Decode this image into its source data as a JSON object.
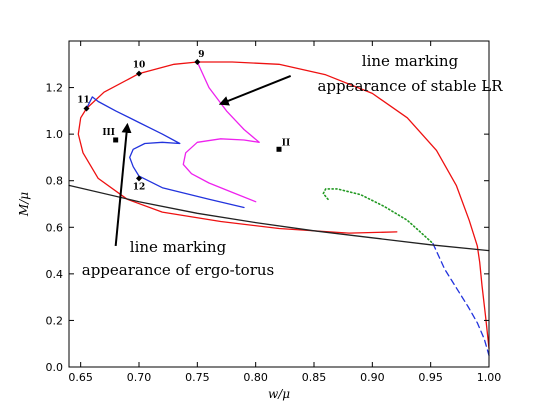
{
  "chart_data": {
    "type": "line",
    "title": "",
    "xlabel": "w/μ",
    "ylabel": "M/μ",
    "xlim": [
      0.64,
      1.0
    ],
    "ylim": [
      0.0,
      1.4
    ],
    "xticks": [
      "0.65",
      "0.70",
      "0.75",
      "0.80",
      "0.85",
      "0.90",
      "0.95",
      "1.00"
    ],
    "xtick_values": [
      0.65,
      0.7,
      0.75,
      0.8,
      0.85,
      0.9,
      0.95,
      1.0
    ],
    "yticks": [
      "0.0",
      "0.2",
      "0.4",
      "0.6",
      "0.8",
      "1.0",
      "1.2"
    ],
    "ytick_values": [
      0.0,
      0.2,
      0.4,
      0.6,
      0.8,
      1.0,
      1.2
    ],
    "grid": false,
    "series": [
      {
        "color": "#ee1111",
        "style": "solid",
        "points": [
          [
            0.921,
            0.58
          ],
          [
            0.88,
            0.575
          ],
          [
            0.82,
            0.595
          ],
          [
            0.77,
            0.625
          ],
          [
            0.72,
            0.665
          ],
          [
            0.69,
            0.72
          ],
          [
            0.665,
            0.81
          ],
          [
            0.652,
            0.92
          ],
          [
            0.648,
            1.0
          ],
          [
            0.65,
            1.07
          ],
          [
            0.655,
            1.11
          ],
          [
            0.67,
            1.18
          ],
          [
            0.7,
            1.26
          ],
          [
            0.73,
            1.3
          ],
          [
            0.75,
            1.31
          ],
          [
            0.78,
            1.31
          ],
          [
            0.82,
            1.3
          ],
          [
            0.86,
            1.255
          ],
          [
            0.9,
            1.175
          ],
          [
            0.93,
            1.07
          ],
          [
            0.955,
            0.93
          ],
          [
            0.972,
            0.78
          ],
          [
            0.983,
            0.63
          ],
          [
            0.99,
            0.52
          ],
          [
            0.992,
            0.45
          ],
          [
            0.994,
            0.35
          ],
          [
            0.997,
            0.22
          ],
          [
            1.0,
            0.08
          ]
        ]
      },
      {
        "color": "#2233dd",
        "style": "solid",
        "points": [
          [
            0.655,
            1.11
          ],
          [
            0.66,
            1.16
          ],
          [
            0.665,
            1.14
          ],
          [
            0.68,
            1.1
          ],
          [
            0.7,
            1.05
          ],
          [
            0.72,
            1.0
          ],
          [
            0.735,
            0.96
          ],
          [
            0.72,
            0.965
          ],
          [
            0.705,
            0.96
          ],
          [
            0.695,
            0.935
          ],
          [
            0.692,
            0.9
          ],
          [
            0.695,
            0.86
          ],
          [
            0.7,
            0.82
          ],
          [
            0.72,
            0.77
          ],
          [
            0.76,
            0.72
          ],
          [
            0.79,
            0.685
          ]
        ]
      },
      {
        "color": "#ee22ee",
        "style": "solid",
        "points": [
          [
            0.75,
            1.31
          ],
          [
            0.76,
            1.2
          ],
          [
            0.775,
            1.1
          ],
          [
            0.79,
            1.02
          ],
          [
            0.803,
            0.965
          ],
          [
            0.79,
            0.975
          ],
          [
            0.77,
            0.98
          ],
          [
            0.75,
            0.965
          ],
          [
            0.74,
            0.92
          ],
          [
            0.738,
            0.87
          ],
          [
            0.745,
            0.83
          ],
          [
            0.76,
            0.79
          ],
          [
            0.78,
            0.75
          ],
          [
            0.8,
            0.71
          ]
        ]
      },
      {
        "color": "#229922",
        "style": "dotted",
        "points": [
          [
            0.862,
            0.72
          ],
          [
            0.858,
            0.745
          ],
          [
            0.86,
            0.765
          ],
          [
            0.87,
            0.765
          ],
          [
            0.89,
            0.74
          ],
          [
            0.91,
            0.69
          ],
          [
            0.93,
            0.63
          ],
          [
            0.94,
            0.585
          ],
          [
            0.952,
            0.53
          ]
        ]
      },
      {
        "color": "#2233dd",
        "style": "dashed",
        "points": [
          [
            0.952,
            0.53
          ],
          [
            0.962,
            0.42
          ],
          [
            0.972,
            0.34
          ],
          [
            0.982,
            0.26
          ],
          [
            0.99,
            0.19
          ],
          [
            0.996,
            0.12
          ],
          [
            1.0,
            0.05
          ]
        ]
      },
      {
        "color": "#222222",
        "style": "solid",
        "points": [
          [
            0.64,
            0.78
          ],
          [
            0.7,
            0.71
          ],
          [
            0.75,
            0.66
          ],
          [
            0.8,
            0.62
          ],
          [
            0.85,
            0.585
          ],
          [
            0.9,
            0.555
          ],
          [
            0.95,
            0.525
          ],
          [
            1.0,
            0.5
          ]
        ]
      }
    ],
    "labeled_points": [
      {
        "label": "9",
        "x": 0.75,
        "y": 1.31,
        "marker": "diamond"
      },
      {
        "label": "10",
        "x": 0.7,
        "y": 1.26,
        "marker": "diamond"
      },
      {
        "label": "11",
        "x": 0.655,
        "y": 1.11,
        "marker": "diamond"
      },
      {
        "label": "12",
        "x": 0.7,
        "y": 0.81,
        "marker": "diamond"
      },
      {
        "label": "II",
        "x": 0.82,
        "y": 0.935,
        "marker": "square"
      },
      {
        "label": "III",
        "x": 0.68,
        "y": 0.975,
        "marker": "square"
      }
    ],
    "annotations": [
      {
        "lines": [
          "line marking",
          "appearance of stable LR"
        ],
        "arrow_from": [
          0.83,
          1.25
        ],
        "arrow_to": [
          0.77,
          1.13
        ]
      },
      {
        "lines": [
          "line marking",
          "appearance of ergo-torus"
        ],
        "arrow_from": [
          0.68,
          0.52
        ],
        "arrow_to": [
          0.69,
          1.04
        ]
      }
    ]
  }
}
